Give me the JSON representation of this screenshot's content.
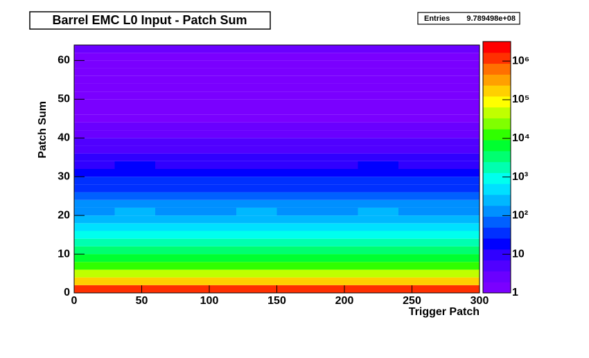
{
  "chart_data": {
    "type": "heatmap",
    "title": "Barrel EMC L0 Input - Patch Sum",
    "stats": {
      "label": "Entries",
      "value": "9.789498e+08"
    },
    "x_label": "Trigger Patch",
    "y_label": "Patch Sum",
    "xbins": [
      0,
      30,
      60,
      90,
      120,
      150,
      180,
      210,
      240,
      270,
      300
    ],
    "ybins": [
      0,
      2,
      4,
      6,
      8,
      10,
      12,
      14,
      16,
      18,
      20,
      22,
      24,
      26,
      28,
      30,
      32,
      34,
      36,
      38,
      40,
      42,
      44,
      46,
      48,
      50,
      52,
      54,
      56,
      58,
      60,
      62,
      64
    ],
    "values": [
      [
        900000,
        1100000,
        1000000,
        950000,
        1050000,
        1000000,
        980000,
        1020000,
        970000,
        1000000
      ],
      [
        200000,
        220000,
        210000,
        190000,
        200000,
        210000,
        205000,
        195000,
        200000,
        210000
      ],
      [
        40000,
        42000,
        38000,
        41000,
        40000,
        39000,
        40000,
        42000,
        38000,
        40000
      ],
      [
        15000,
        16000,
        14000,
        15000,
        15500,
        14500,
        15000,
        16000,
        14000,
        15000
      ],
      [
        8000,
        8500,
        7500,
        8000,
        8200,
        7800,
        8000,
        8300,
        7700,
        8000
      ],
      [
        4000,
        4200,
        3800,
        4100,
        4000,
        3900,
        4000,
        4200,
        3800,
        4000
      ],
      [
        2000,
        2100,
        1900,
        2000,
        2050,
        1950,
        2000,
        2100,
        1900,
        2000
      ],
      [
        900,
        950,
        850,
        900,
        920,
        880,
        900,
        950,
        850,
        900
      ],
      [
        500,
        520,
        480,
        500,
        510,
        490,
        500,
        520,
        480,
        500
      ],
      [
        300,
        310,
        290,
        300,
        305,
        295,
        300,
        310,
        290,
        300
      ],
      [
        180,
        190,
        170,
        180,
        185,
        175,
        180,
        190,
        170,
        180
      ],
      [
        110,
        115,
        105,
        110,
        112,
        108,
        110,
        115,
        105,
        110
      ],
      [
        70,
        72,
        68,
        70,
        71,
        69,
        70,
        72,
        68,
        70
      ],
      [
        45,
        47,
        43,
        45,
        46,
        44,
        45,
        47,
        43,
        45
      ],
      [
        30,
        31,
        29,
        30,
        30,
        29,
        30,
        31,
        29,
        30
      ],
      [
        20,
        21,
        19,
        20,
        20,
        19,
        20,
        21,
        19,
        20
      ],
      [
        13,
        14,
        12,
        13,
        13,
        12,
        13,
        14,
        12,
        13
      ],
      [
        9,
        9,
        8,
        9,
        9,
        8,
        9,
        9,
        8,
        9
      ],
      [
        6,
        6,
        5,
        6,
        6,
        5,
        6,
        6,
        5,
        6
      ],
      [
        4,
        4,
        4,
        4,
        4,
        4,
        4,
        4,
        4,
        4
      ],
      [
        3,
        3,
        3,
        3,
        3,
        3,
        3,
        3,
        3,
        3
      ],
      [
        2,
        2,
        2,
        2,
        2,
        2,
        2,
        2,
        2,
        2
      ],
      [
        1,
        1,
        1,
        1,
        1,
        1,
        1,
        1,
        1,
        1
      ],
      [
        1,
        1,
        1,
        1,
        1,
        1,
        1,
        1,
        1,
        1
      ],
      [
        1,
        1,
        1,
        1,
        1,
        1,
        1,
        1,
        1,
        1
      ],
      [
        1,
        1,
        1,
        1,
        1,
        1,
        1,
        1,
        1,
        1
      ],
      [
        1,
        1,
        1,
        1,
        1,
        1,
        1,
        1,
        1,
        1
      ],
      [
        1,
        1,
        1,
        1,
        1,
        1,
        1,
        1,
        1,
        1
      ],
      [
        1,
        1,
        1,
        1,
        1,
        1,
        1,
        1,
        1,
        1
      ],
      [
        1,
        1,
        1,
        1,
        1,
        1,
        1,
        1,
        1,
        1
      ],
      [
        1,
        1,
        1,
        1,
        1,
        1,
        1,
        1,
        1,
        1
      ],
      [
        2,
        2,
        2,
        2,
        2,
        2,
        2,
        2,
        2,
        2
      ]
    ],
    "xlim": [
      0,
      300
    ],
    "ylim": [
      0,
      64
    ],
    "xticks": [
      0,
      50,
      100,
      150,
      200,
      250,
      300
    ],
    "yticks": [
      0,
      10,
      20,
      30,
      40,
      50,
      60
    ],
    "zscale": "log",
    "zlim": [
      1,
      3200000
    ],
    "zticks": [
      1,
      10,
      {
        "value": 100,
        "label": "10²"
      },
      {
        "value": 1000,
        "label": "10³"
      },
      {
        "value": 10000,
        "label": "10⁴"
      },
      {
        "value": 100000,
        "label": "10⁵"
      },
      {
        "value": 1000000,
        "label": "10⁶"
      }
    ],
    "palette": [
      "#7a00ff",
      "#6a00ff",
      "#5000ff",
      "#3000ff",
      "#0000ff",
      "#0030ff",
      "#0060ff",
      "#0090ff",
      "#00b8ff",
      "#00e0ff",
      "#00ffee",
      "#00ffb0",
      "#00ff70",
      "#00ff30",
      "#30ff00",
      "#80ff00",
      "#c0ff00",
      "#ffff00",
      "#ffd000",
      "#ffa000",
      "#ff7000",
      "#ff3000",
      "#ff0000"
    ]
  }
}
